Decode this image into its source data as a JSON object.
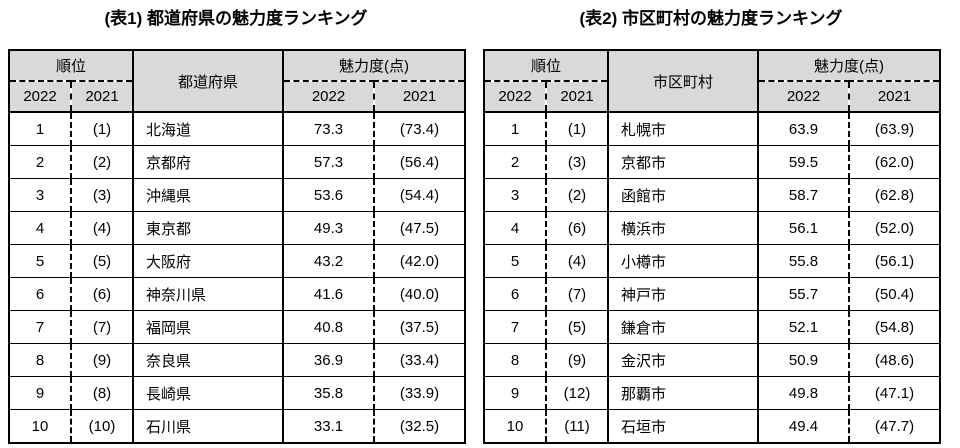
{
  "colors": {
    "header_bg": "#d9d9d9",
    "border": "#000000",
    "text": "#000000",
    "background": "#ffffff"
  },
  "tables": [
    {
      "title": "(表1) 都道府県の魅力度ランキング",
      "headers": {
        "rank_group": "順位",
        "name": "都道府県",
        "score_group": "魅力度(点)",
        "col_2022": "2022",
        "col_2021": "2021"
      },
      "rows": [
        [
          "1",
          "(1)",
          "北海道",
          "73.3",
          "(73.4)"
        ],
        [
          "2",
          "(2)",
          "京都府",
          "57.3",
          "(56.4)"
        ],
        [
          "3",
          "(3)",
          "沖縄県",
          "53.6",
          "(54.4)"
        ],
        [
          "4",
          "(4)",
          "東京都",
          "49.3",
          "(47.5)"
        ],
        [
          "5",
          "(5)",
          "大阪府",
          "43.2",
          "(42.0)"
        ],
        [
          "6",
          "(6)",
          "神奈川県",
          "41.6",
          "(40.0)"
        ],
        [
          "7",
          "(7)",
          "福岡県",
          "40.8",
          "(37.5)"
        ],
        [
          "8",
          "(9)",
          "奈良県",
          "36.9",
          "(33.4)"
        ],
        [
          "9",
          "(8)",
          "長崎県",
          "35.8",
          "(33.9)"
        ],
        [
          "10",
          "(10)",
          "石川県",
          "33.1",
          "(32.5)"
        ]
      ]
    },
    {
      "title": "(表2) 市区町村の魅力度ランキング",
      "headers": {
        "rank_group": "順位",
        "name": "市区町村",
        "score_group": "魅力度(点)",
        "col_2022": "2022",
        "col_2021": "2021"
      },
      "rows": [
        [
          "1",
          "(1)",
          "札幌市",
          "63.9",
          "(63.9)"
        ],
        [
          "2",
          "(3)",
          "京都市",
          "59.5",
          "(62.0)"
        ],
        [
          "3",
          "(2)",
          "函館市",
          "58.7",
          "(62.8)"
        ],
        [
          "4",
          "(6)",
          "横浜市",
          "56.1",
          "(52.0)"
        ],
        [
          "5",
          "(4)",
          "小樽市",
          "55.8",
          "(56.1)"
        ],
        [
          "6",
          "(7)",
          "神戸市",
          "55.7",
          "(50.4)"
        ],
        [
          "7",
          "(5)",
          "鎌倉市",
          "52.1",
          "(54.8)"
        ],
        [
          "8",
          "(9)",
          "金沢市",
          "50.9",
          "(48.6)"
        ],
        [
          "9",
          "(12)",
          "那覇市",
          "49.8",
          "(47.1)"
        ],
        [
          "10",
          "(11)",
          "石垣市",
          "49.4",
          "(47.7)"
        ]
      ]
    }
  ]
}
